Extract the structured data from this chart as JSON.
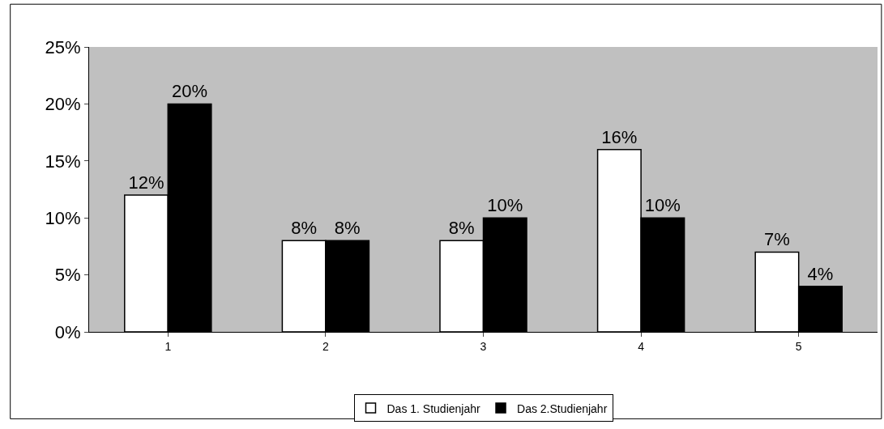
{
  "chart_data": {
    "type": "bar",
    "categories": [
      "1",
      "2",
      "3",
      "4",
      "5"
    ],
    "series": [
      {
        "name": "Das 1. Studienjahr",
        "color": "#ffffff",
        "values": [
          12,
          8,
          8,
          16,
          7
        ],
        "value_labels": [
          "12%",
          "8%",
          "8%",
          "16%",
          "7%"
        ]
      },
      {
        "name": "Das 2.Studienjahr",
        "color": "#000000",
        "values": [
          20,
          8,
          10,
          10,
          4
        ],
        "value_labels": [
          "20%",
          "8%",
          "10%",
          "10%",
          "4%"
        ]
      }
    ],
    "ylim": [
      0,
      25
    ],
    "yticks": [
      {
        "value": 0,
        "label": "0%"
      },
      {
        "value": 5,
        "label": "5%"
      },
      {
        "value": 10,
        "label": "10%"
      },
      {
        "value": 15,
        "label": "15%"
      },
      {
        "value": 20,
        "label": "20%"
      },
      {
        "value": 25,
        "label": "25%"
      }
    ],
    "grid": false,
    "legend": "bottom"
  }
}
